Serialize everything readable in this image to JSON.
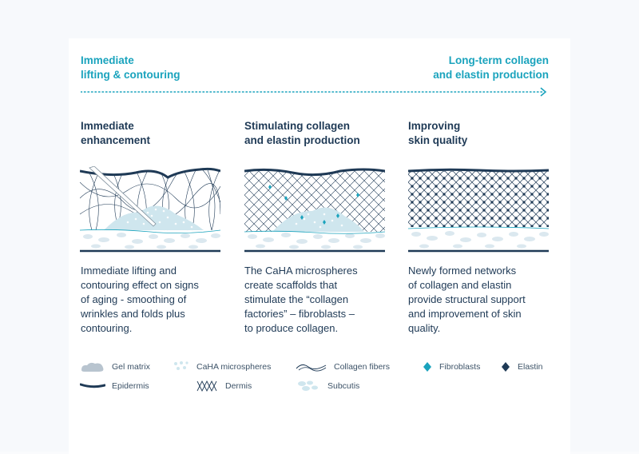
{
  "timeline": {
    "start": "Immediate\nlifting & contouring",
    "end": "Long-term collagen\nand elastin production"
  },
  "columns": [
    {
      "title": "Immediate\nenhancement",
      "description": "Immediate lifting and\ncontouring effect on signs\nof aging - smoothing of\nwrinkles and folds plus\ncontouring."
    },
    {
      "title": "Stimulating collagen\nand elastin production",
      "description": "The CaHA microspheres\ncreate scaffolds that\nstimulate the “collagen\nfactories” – fibroblasts –\nto produce collagen."
    },
    {
      "title": "Improving\nskin quality",
      "description": "Newly formed networks\nof collagen and elastin\nprovide structural support\nand improvement of skin\nquality."
    }
  ],
  "legend": [
    {
      "label": "Gel matrix",
      "icon": "gel-matrix-icon"
    },
    {
      "label": "CaHA microspheres",
      "icon": "caha-microspheres-icon"
    },
    {
      "label": "Collagen fibers",
      "icon": "collagen-fibers-icon"
    },
    {
      "label": "Fibroblasts",
      "icon": "fibroblast-icon"
    },
    {
      "label": "Elastin",
      "icon": "elastin-icon"
    },
    {
      "label": "Epidermis",
      "icon": "epidermis-icon"
    },
    {
      "label": "Dermis",
      "icon": "dermis-icon"
    },
    {
      "label": "Subcutis",
      "icon": "subcutis-icon"
    }
  ],
  "colors": {
    "accent": "#1aa3bd",
    "navy": "#1f3a56",
    "gel": "#b8c4cf",
    "caha": "#cfe6ee",
    "fibroblast": "#1aa3bd",
    "elastin": "#1f3a56"
  }
}
